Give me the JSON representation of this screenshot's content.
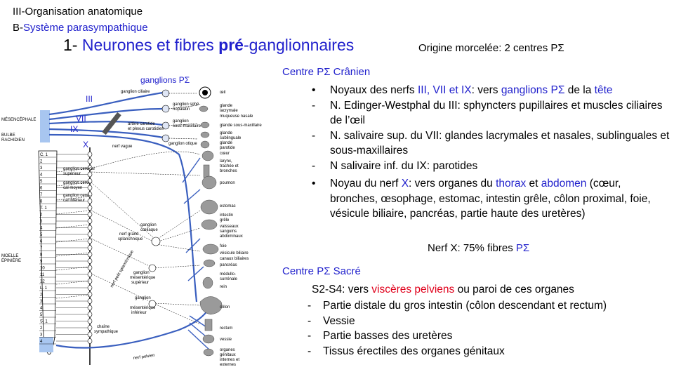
{
  "header": {
    "line1": "III-Organisation anatomique",
    "line2_prefix": "B-",
    "line2_blue": "Système parasympathique",
    "title_num": "1- ",
    "title_a": "Neurones et fibres ",
    "title_b": "pré",
    "title_c": "-ganglionnaires",
    "origin": "Origine morcelée: 2 centres PΣ"
  },
  "cranial": {
    "heading": "Centre PΣ Crânien",
    "items": [
      {
        "marker": "•",
        "parts": [
          {
            "t": "Noyaux des nerfs "
          },
          {
            "t": "III, VII et IX",
            "c": "blue"
          },
          {
            "t": ": vers "
          },
          {
            "t": "ganglions PΣ",
            "c": "blue"
          },
          {
            "t": " de la "
          },
          {
            "t": "tête",
            "c": "blue"
          }
        ]
      },
      {
        "marker": "-",
        "parts": [
          {
            "t": "N. Edinger-Westphal du III: sphyncters pupillaires et muscles ciliaires de l’œil"
          }
        ]
      },
      {
        "marker": "-",
        "parts": [
          {
            "t": "N. salivaire sup. du VII: glandes lacrymales et nasales, sublinguales et sous-maxillaires"
          }
        ]
      },
      {
        "marker": "-",
        "parts": [
          {
            "t": "N salivaire inf. du IX: parotides"
          }
        ]
      },
      {
        "marker": "•",
        "parts": [
          {
            "t": "Noyau du nerf "
          },
          {
            "t": "X",
            "c": "blue"
          },
          {
            "t": ": vers organes du "
          },
          {
            "t": "thorax",
            "c": "blue"
          },
          {
            "t": " et "
          },
          {
            "t": "abdomen",
            "c": "blue"
          },
          {
            "t": " (cœur, bronches, œsophage, estomac, intestin grêle, côlon proximal, foie, vésicule biliaire, pancréas, partie haute des uretères)"
          }
        ]
      }
    ],
    "note_a": "Nerf X: 75% fibres ",
    "note_b": "PΣ"
  },
  "sacral": {
    "heading": "Centre PΣ Sacré",
    "intro_a": "S2-S4:  vers ",
    "intro_b": "viscères pelviens",
    "intro_c": " ou paroi de ces organes",
    "items": [
      "Partie distale du gros intestin (côlon descendant et rectum)",
      "Vessie",
      "Partie basses des uretères",
      "Tissus érectiles des organes génitaux"
    ]
  },
  "diagram": {
    "blue_labels": {
      "ganglions": "ganglions PΣ",
      "III": "III",
      "VII": "VII",
      "IX": "IX",
      "X": "X"
    },
    "left_labels": {
      "mes1": "MÉSENCÉPHALE",
      "bulbe1": "BULBE",
      "bulbe2": "RACHIDIEN",
      "moelle1": "MOELLE",
      "moelle2": "ÉPINIÈRE"
    },
    "segments": [
      "C. 1",
      "2",
      "3",
      "4",
      "5",
      "6",
      "7",
      "8",
      "T. 1",
      "2",
      "3",
      "4",
      "5",
      "6",
      "7",
      "8",
      "9",
      "10",
      "11",
      "12",
      "L. 1",
      "2",
      "3",
      "4",
      "5",
      "S. 1",
      "2",
      "3",
      "4"
    ],
    "ganglia_labels": {
      "ciliaire": "ganglion ciliaire",
      "spheno1": "ganglion sphé-",
      "spheno2": "nopalatin",
      "sousmax1": "ganglion",
      "sousmax2": "sous-maxillaire",
      "otique": "ganglion otique",
      "carot1": "artère carotide",
      "carot2": "et plexus carotidien",
      "vague": "nerf vague",
      "cerv_sup1": "ganglion cervical",
      "cerv_sup2": "supérieur",
      "cerv_moy1": "ganglion cervi-",
      "cerv_moy2": "cal moyen",
      "cerv_inf1": "ganglion cervi-",
      "cerv_inf2": "cal inférieur",
      "splanch1": "nerf grand",
      "splanch2": "splanchnique",
      "coel1": "ganglion",
      "coel2": "cœliaque",
      "petit_splanch": "nerf petit splanchnique",
      "mes_sup1": "ganglion",
      "mes_sup2": "mésentérique",
      "mes_sup3": "supérieur",
      "mes_inf1": "ganglion",
      "mes_inf2": "mésentérique",
      "mes_inf3": "inférieur",
      "chaine1": "chaîne",
      "chaine2": "sympathique",
      "pelvien": "nerf pelvien"
    },
    "organs": [
      "œil",
      "glande",
      "lacrymale",
      "muqueuse nasale",
      "glande sous-maxillaire",
      "glande",
      "sublinguale",
      "glande",
      "parotide",
      "cœur",
      "larynx,",
      "trachée et",
      "bronches",
      "poumon",
      "estomac",
      "intestin",
      "grêle",
      "vaisseaux",
      "sanguins",
      "abdominaux",
      "foie",
      "vésicule biliaire",
      "canaux biliaires",
      "pancréas",
      "médullo-",
      "surrénale",
      "rein",
      "côlon",
      "rectum",
      "vessie",
      "organes",
      "génitaux",
      "internes et",
      "externes"
    ]
  }
}
